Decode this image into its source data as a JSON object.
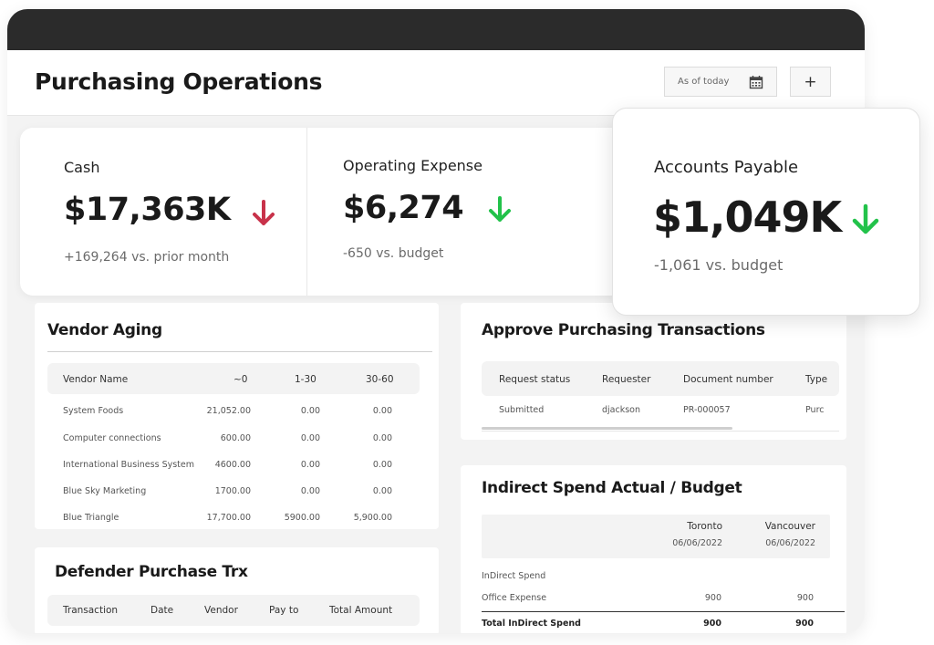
{
  "header": {
    "title": "Purchasing Operations",
    "date_filter": "As of today",
    "add_label": "+"
  },
  "kpis": {
    "cash": {
      "label": "Cash",
      "value": "$17,363K",
      "sub": "+169,264 vs. prior month",
      "trend": "down",
      "arrow_color": "#c8324a"
    },
    "opex": {
      "label": "Operating Expense",
      "value": "$6,274",
      "sub": "-650 vs. budget",
      "trend": "down",
      "arrow_color": "#22c24a"
    },
    "ap": {
      "label": "Accounts Payable",
      "value": "$1,049K",
      "sub": "-1,061 vs. budget",
      "trend": "down",
      "arrow_color": "#22c24a"
    }
  },
  "vendor_aging": {
    "title": "Vendor Aging",
    "columns": [
      "Vendor Name",
      "~0",
      "1-30",
      "30-60"
    ],
    "rows": [
      [
        "System Foods",
        "21,052.00",
        "0.00",
        "0.00"
      ],
      [
        "Computer connections",
        "600.00",
        "0.00",
        "0.00"
      ],
      [
        "International Business System",
        "4600.00",
        "0.00",
        "0.00"
      ],
      [
        "Blue Sky Marketing",
        "1700.00",
        "0.00",
        "0.00"
      ],
      [
        "Blue Triangle",
        "17,700.00",
        "5900.00",
        "5,900.00"
      ]
    ]
  },
  "approve": {
    "title": "Approve Purchasing Transactions",
    "columns": [
      "Request status",
      "Requester",
      "Document number",
      "Type"
    ],
    "rows": [
      [
        "Submitted",
        "djackson",
        "PR-000057",
        "Purc"
      ]
    ]
  },
  "indirect": {
    "title": "Indirect Spend Actual / Budget",
    "col1": {
      "name": "Toronto",
      "date": "06/06/2022"
    },
    "col2": {
      "name": "Vancouver",
      "date": "06/06/2022"
    },
    "section": "InDirect Spend",
    "rows": [
      {
        "label": "Office Expense",
        "v1": "900",
        "v2": "900"
      }
    ],
    "total": {
      "label": "Total InDirect Spend",
      "v1": "900",
      "v2": "900"
    }
  },
  "defender": {
    "title": "Defender Purchase Trx",
    "columns": [
      "Transaction",
      "Date",
      "Vendor",
      "Pay to",
      "Total Amount"
    ]
  },
  "colors": {
    "topbar": "#2b2b2b",
    "down_red": "#c8324a",
    "down_green": "#22c24a"
  }
}
